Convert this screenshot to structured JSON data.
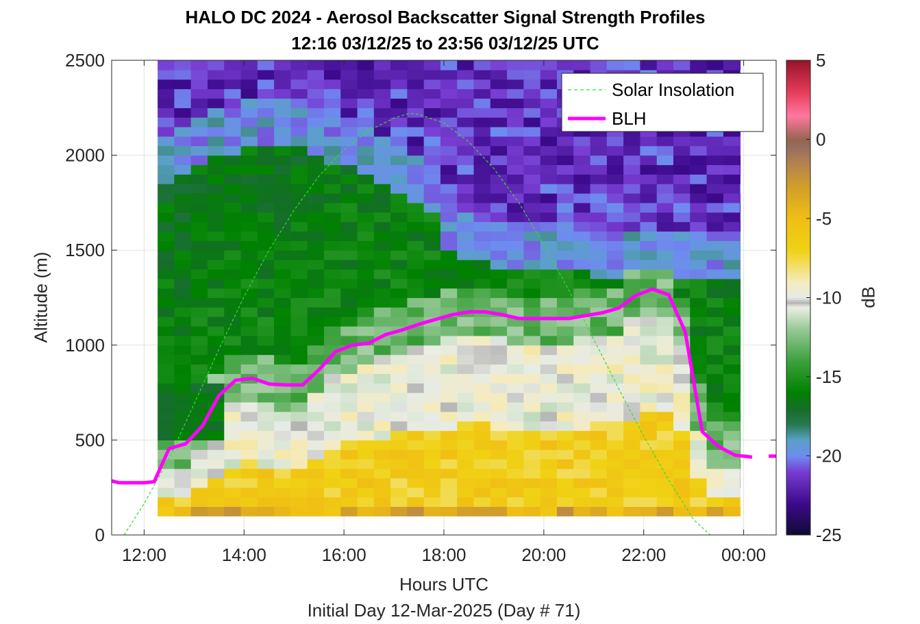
{
  "chart_data": {
    "type": "heatmap",
    "title": "HALO DC 2024 - Aerosol Backscatter Signal Strength Profiles",
    "subtitle": "12:16 03/12/25 to 23:56 03/12/25  UTC",
    "xlabel": "Hours UTC",
    "xlabel2": "Initial Day 12-Mar-2025 (Day # 71)",
    "ylabel": "Altitude (m)",
    "xlim": [
      11.35,
      24.65
    ],
    "ylim": [
      0,
      2500
    ],
    "x_ticks": [
      12,
      14,
      16,
      18,
      20,
      22,
      24
    ],
    "x_tick_labels": [
      "12:00",
      "14:00",
      "16:00",
      "18:00",
      "20:00",
      "22:00",
      "00:00"
    ],
    "y_ticks": [
      0,
      500,
      1000,
      1500,
      2000,
      2500
    ],
    "y_tick_labels": [
      "0",
      "500",
      "1000",
      "1500",
      "2000",
      "2500"
    ],
    "grid": true,
    "legend_position": "top-right",
    "colorbar": {
      "label": "dB",
      "range": [
        -25,
        5
      ],
      "ticks": [
        5,
        0,
        -5,
        -10,
        -15,
        -20,
        -25
      ],
      "tick_labels": [
        "5",
        "0",
        "-5",
        "-10",
        "-15",
        "-20",
        "-25"
      ]
    },
    "heatmap": {
      "x_start": 12.27,
      "x_end": 23.93,
      "bin_hours": 0.333,
      "y_start": 100,
      "bin_m": 50,
      "y_end": 2500
    },
    "series": [
      {
        "name": "Solar Insolation",
        "style": "dashed",
        "color": "#33dd33",
        "x": [
          11.6,
          12.0,
          12.5,
          13.0,
          13.5,
          14.0,
          14.5,
          15.0,
          15.5,
          16.0,
          16.5,
          17.0,
          17.3,
          17.5,
          18.0,
          18.5,
          19.0,
          19.5,
          20.0,
          20.5,
          21.0,
          21.5,
          22.0,
          22.5,
          23.0,
          23.33,
          24.65
        ],
        "values": [
          0,
          165,
          404,
          690,
          980,
          1255,
          1500,
          1710,
          1890,
          2030,
          2130,
          2195,
          2220,
          2215,
          2170,
          2070,
          1930,
          1750,
          1530,
          1290,
          1030,
          770,
          520,
          290,
          80,
          0,
          0
        ]
      },
      {
        "name": "BLH",
        "style": "solid",
        "color": "#ff00ff",
        "x": [
          11.35,
          11.5,
          12.0,
          12.2,
          12.5,
          12.83,
          13.17,
          13.5,
          13.83,
          14.17,
          14.5,
          14.83,
          15.17,
          15.5,
          15.83,
          16.17,
          16.5,
          16.83,
          17.17,
          17.5,
          17.83,
          18.17,
          18.5,
          18.83,
          19.17,
          19.5,
          19.83,
          20.17,
          20.5,
          20.83,
          21.17,
          21.5,
          21.83,
          22.17,
          22.5,
          22.83,
          23.17,
          23.5,
          23.83,
          24.17
        ],
        "values": [
          285,
          275,
          275,
          280,
          455,
          480,
          575,
          735,
          815,
          825,
          795,
          790,
          790,
          870,
          965,
          1000,
          1010,
          1055,
          1080,
          1110,
          1135,
          1160,
          1175,
          1175,
          1160,
          1140,
          1140,
          1140,
          1140,
          1155,
          1170,
          1195,
          1260,
          1295,
          1265,
          1070,
          545,
          465,
          420,
          410
        ],
        "gap_after_x": 24.17,
        "segment2_x": [
          24.5,
          24.65
        ],
        "segment2_values": [
          415,
          415
        ]
      }
    ]
  }
}
